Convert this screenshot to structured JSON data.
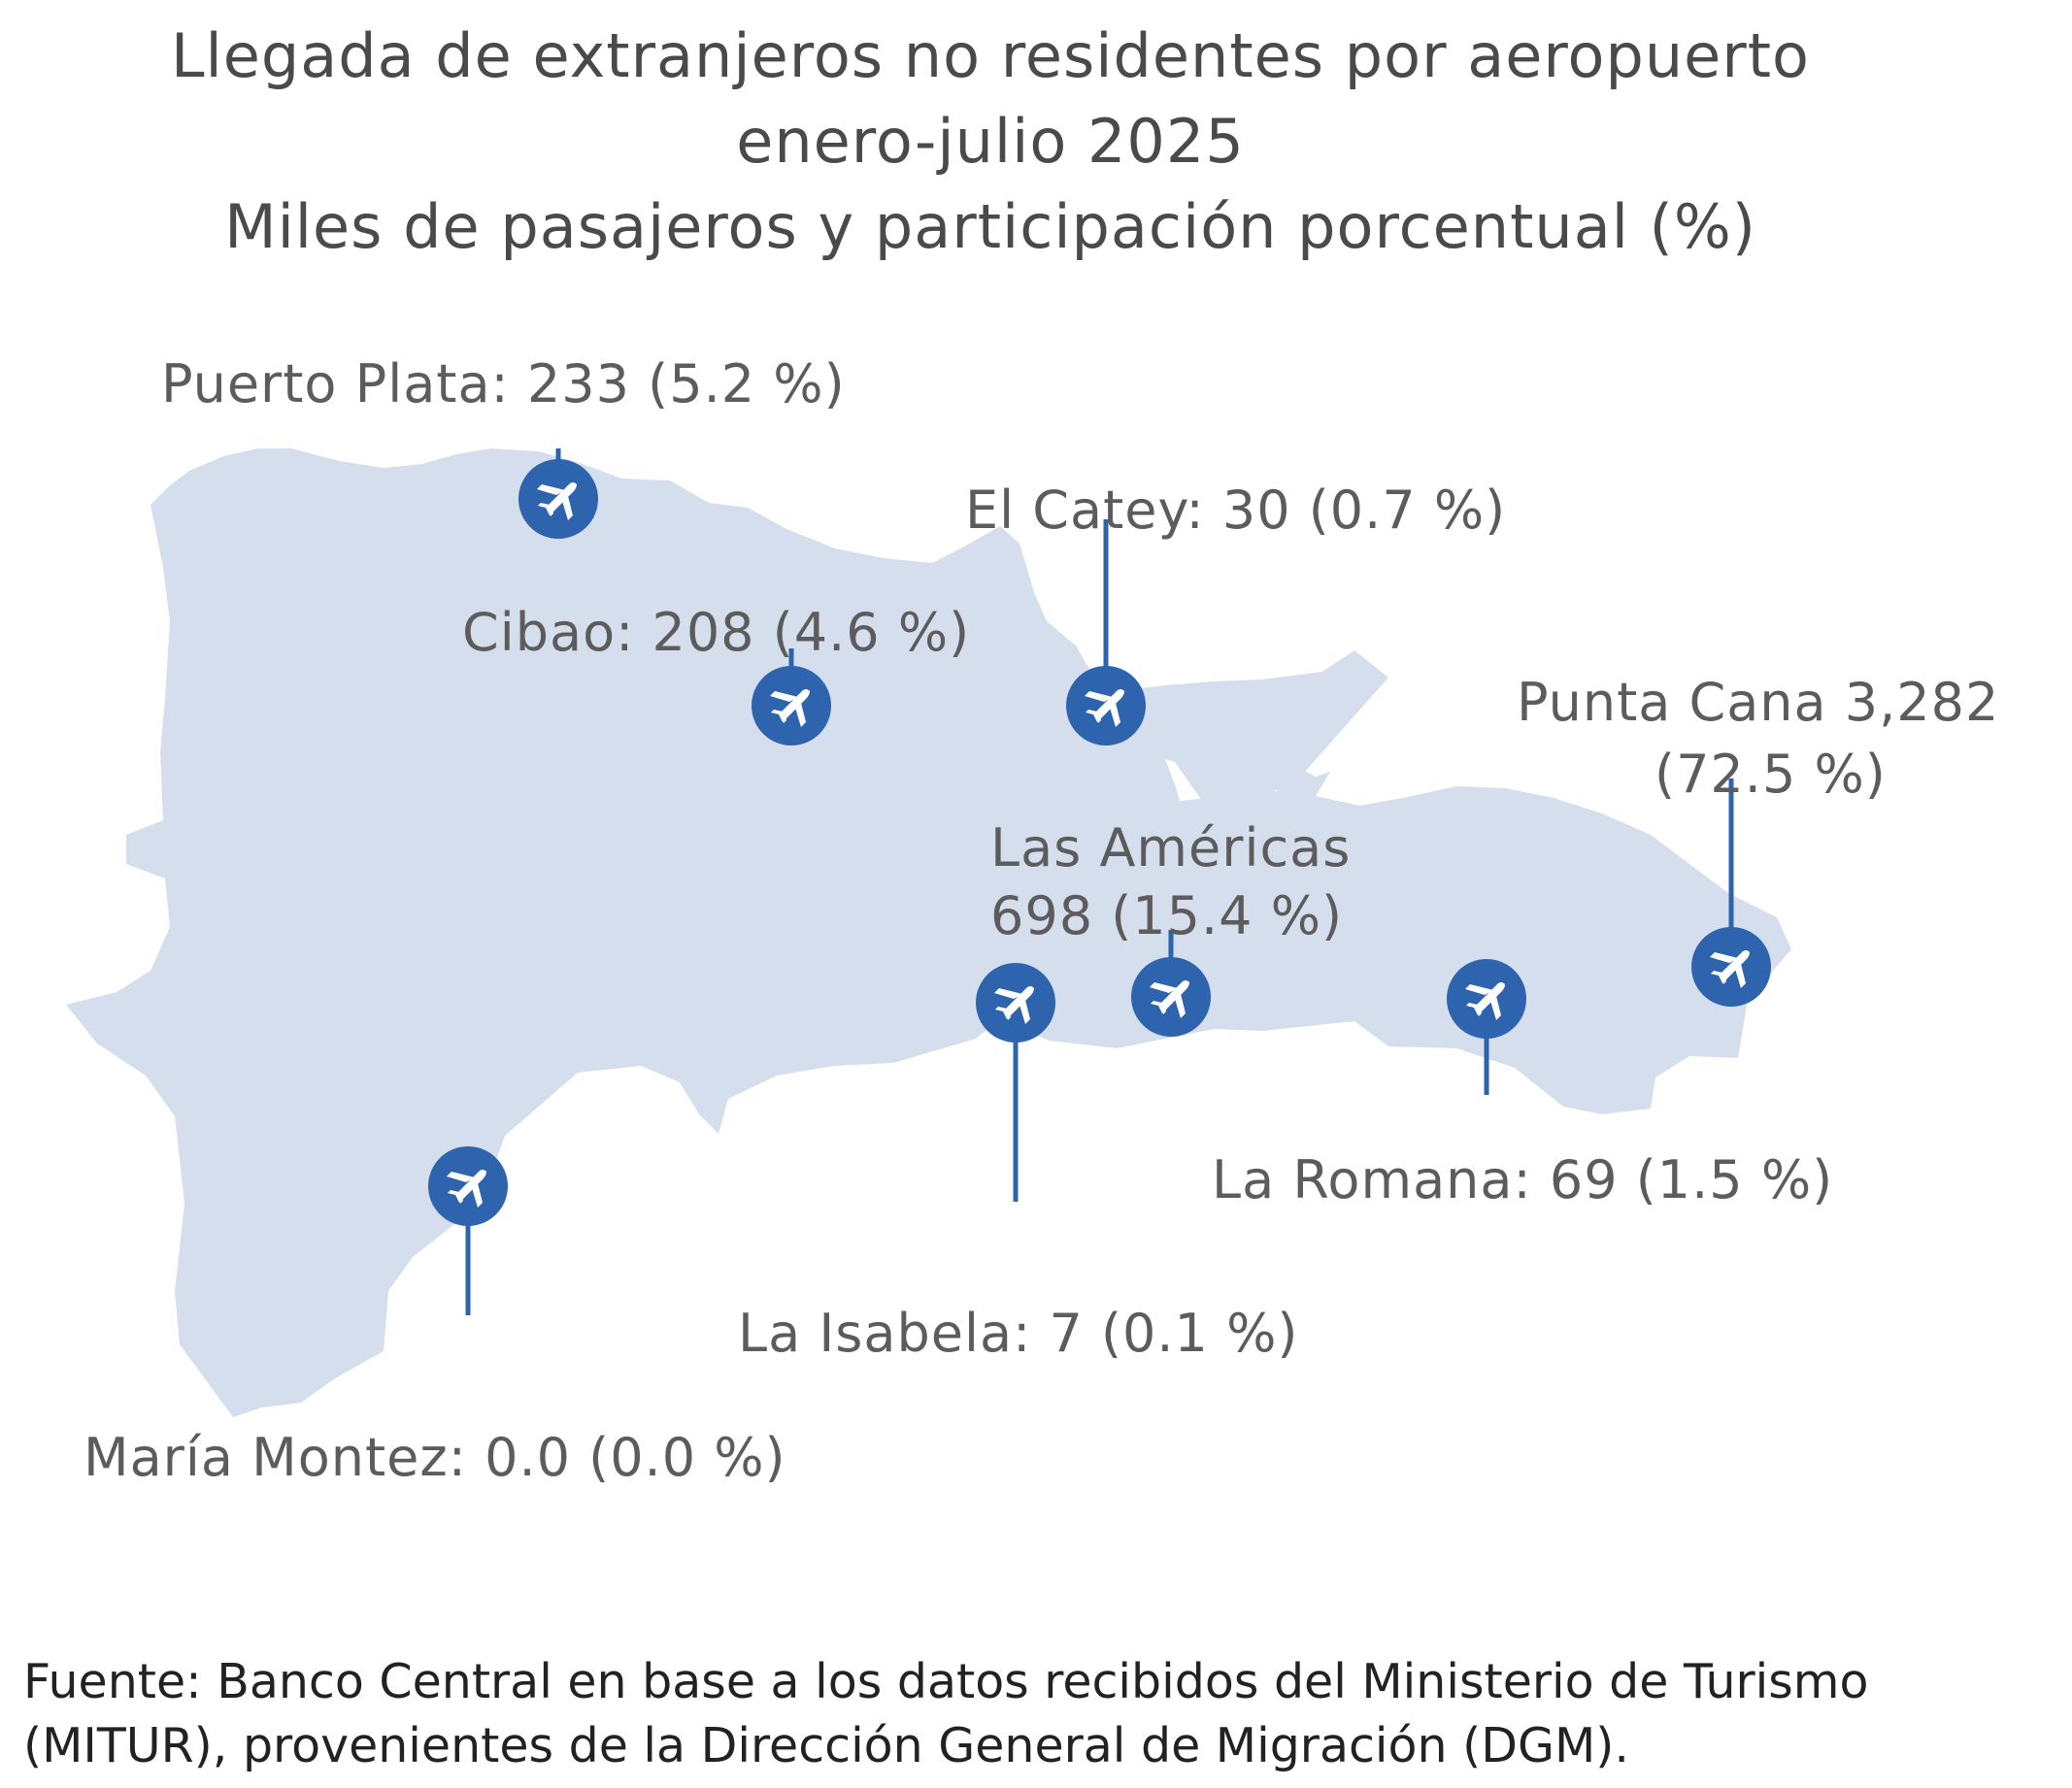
{
  "title": {
    "line1": "Llegada de extranjeros no residentes por aeropuerto",
    "line2": "enero-julio 2025",
    "line3": "Miles de pasajeros y participación porcentual (%)"
  },
  "colors": {
    "land": "#d5deed",
    "marker": "#2e63ae",
    "plane": "#ffffff"
  },
  "airports": [
    {
      "id": "puerto-plata",
      "label": "Puerto Plata: 233 (5.2 %)",
      "value": 233,
      "share": 5.2
    },
    {
      "id": "el-catey",
      "label": "El Catey: 30 (0.7 %)",
      "value": 30,
      "share": 0.7
    },
    {
      "id": "cibao",
      "label": "Cibao: 208 (4.6 %)",
      "value": 208,
      "share": 4.6
    },
    {
      "id": "punta-cana",
      "label_line1": "Punta Cana 3,282",
      "label_line2": "(72.5 %)",
      "value": 3282,
      "share": 72.5
    },
    {
      "id": "las-americas",
      "label_line1": "Las Américas",
      "label_line2": "698 (15.4 %)",
      "value": 698,
      "share": 15.4
    },
    {
      "id": "la-romana",
      "label": "La Romana: 69 (1.5 %)",
      "value": 69,
      "share": 1.5
    },
    {
      "id": "la-isabela",
      "label": "La Isabela: 7 (0.1 %)",
      "value": 7,
      "share": 0.1
    },
    {
      "id": "maria-montez",
      "label": "María Montez: 0.0 (0.0 %)",
      "value": 0.0,
      "share": 0.0
    }
  ],
  "source": {
    "line1": "Fuente: Banco Central en base a los datos recibidos del Ministerio de Turismo",
    "line2": "(MITUR), provenientes de la Dirección General de Migración (DGM)."
  }
}
